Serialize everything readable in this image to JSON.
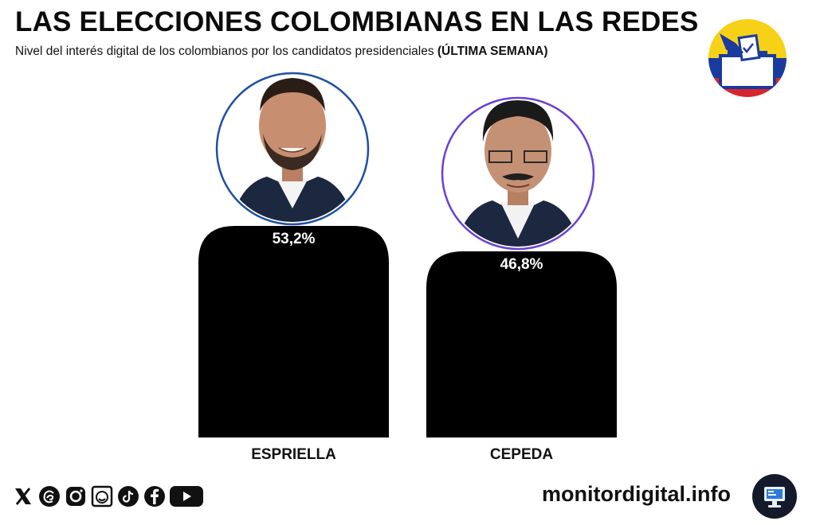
{
  "header": {
    "title": "LAS ELECCIONES COLOMBIANAS EN LAS REDES",
    "subtitle": "Nivel del interés digital de los colombianos por los candidatos presidenciales",
    "subtitle_emphasis": "(ÚLTIMA SEMANA)"
  },
  "chart_data": {
    "type": "bar",
    "categories": [
      "ESPRIELLA",
      "CEPEDA"
    ],
    "values": [
      53.2,
      46.8
    ],
    "value_labels": [
      "53,2%",
      "46,8%"
    ],
    "unit": "%",
    "title": "LAS ELECCIONES COLOMBIANAS EN LAS REDES",
    "xlabel": "",
    "ylabel": "",
    "grid": false,
    "bar_color": "#000000",
    "ring_colors": [
      "#1f4fa0",
      "#6a3fd6"
    ],
    "value_label_color": "#ffffff"
  },
  "footer": {
    "social_icons": [
      "x-icon",
      "threads-icon",
      "instagram-icon",
      "meme-icon",
      "tiktok-icon",
      "facebook-icon",
      "youtube-icon"
    ],
    "site": "monitordigital.info",
    "logo_icon": "monitor-icon"
  },
  "flag_colors": {
    "yellow": "#f7d117",
    "blue": "#1a3a9e",
    "red": "#d6262d"
  }
}
